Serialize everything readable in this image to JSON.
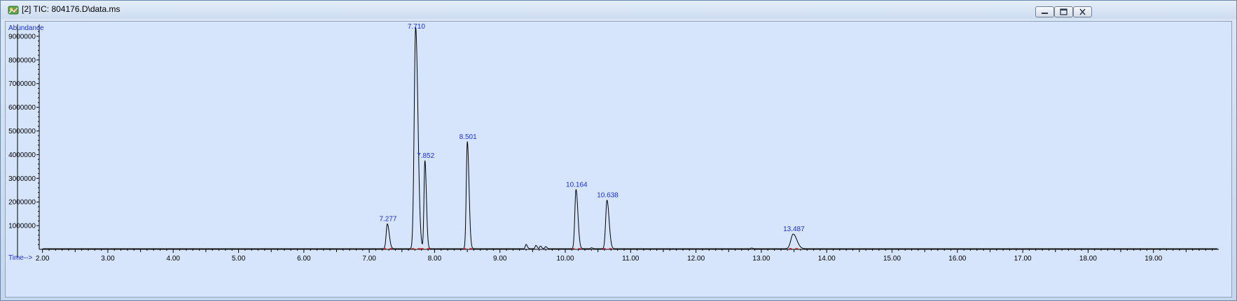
{
  "window": {
    "title": "[2] TIC: 804176.D\\data.ms",
    "icon": "chromatogram-app-icon",
    "controls": [
      "minimize-icon",
      "restore-icon",
      "close-icon"
    ]
  },
  "colors": {
    "plot_background": "#d6e5fb",
    "trace": "#000000",
    "peak_label": "#1a2fd6",
    "axis_label": "#1a2fd6",
    "baseline_marker": "#e02020"
  },
  "chart_data": {
    "type": "line",
    "ylabel": "Abundance",
    "xlabel": "Time-->",
    "xlim": [
      1.95,
      20.0
    ],
    "ylim": [
      0,
      9500000
    ],
    "x_ticks": [
      "2.00",
      "3.00",
      "4.00",
      "5.00",
      "6.00",
      "7.00",
      "8.00",
      "9.00",
      "10.00",
      "11.00",
      "12.00",
      "13.00",
      "14.00",
      "15.00",
      "16.00",
      "17.00",
      "18.00",
      "19.00"
    ],
    "y_ticks": [
      "1000000",
      "2000000",
      "3000000",
      "4000000",
      "5000000",
      "6000000",
      "7000000",
      "8000000",
      "9000000"
    ],
    "peaks": [
      {
        "label": "7.277",
        "x": 7.277,
        "y": 1050000,
        "width": 0.018
      },
      {
        "label": "7.710",
        "x": 7.71,
        "y": 9350000,
        "width": 0.022
      },
      {
        "label": "7.852",
        "x": 7.852,
        "y": 3720000,
        "width": 0.014
      },
      {
        "label": "8.501",
        "x": 8.501,
        "y": 4520000,
        "width": 0.016
      },
      {
        "label": "10.164",
        "x": 10.164,
        "y": 2500000,
        "width": 0.018
      },
      {
        "label": "10.638",
        "x": 10.638,
        "y": 2050000,
        "width": 0.02
      },
      {
        "label": "13.487",
        "x": 13.487,
        "y": 620000,
        "width": 0.035
      }
    ],
    "minor_peaks": [
      {
        "x": 9.4,
        "y": 180000
      },
      {
        "x": 9.55,
        "y": 140000
      },
      {
        "x": 9.62,
        "y": 110000
      },
      {
        "x": 9.7,
        "y": 90000
      },
      {
        "x": 10.4,
        "y": 40000
      },
      {
        "x": 12.85,
        "y": 30000
      }
    ]
  }
}
